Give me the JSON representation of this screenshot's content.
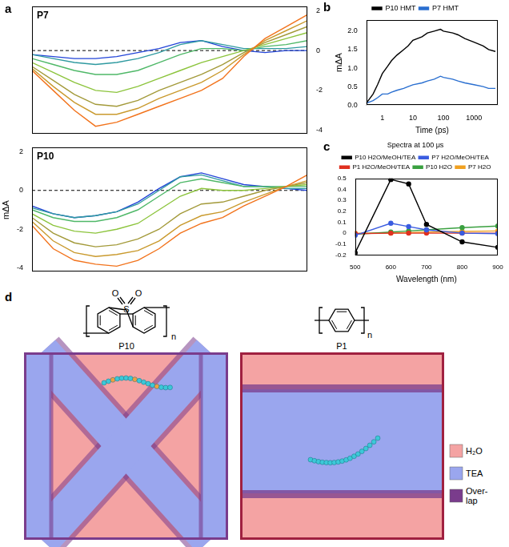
{
  "chart_data": [
    {
      "type": "line",
      "panel_label": "a",
      "title": "P7",
      "tick_labels": "y",
      "grid": false,
      "x": [
        450,
        475,
        500,
        525,
        550,
        575,
        600,
        625,
        650,
        675,
        700,
        725,
        750,
        775
      ],
      "xlim": [
        450,
        775
      ],
      "ylim": [
        -4.2,
        2.2
      ],
      "yticks": [
        -4,
        -2,
        0,
        2
      ],
      "series": [
        {
          "color": "#f2731c",
          "values": [
            -1.0,
            -2.0,
            -3.0,
            -3.8,
            -3.6,
            -3.2,
            -2.8,
            -2.4,
            -2.0,
            -1.4,
            -0.3,
            0.6,
            1.2,
            1.8
          ]
        },
        {
          "color": "#c99a2e",
          "values": [
            -0.9,
            -1.8,
            -2.6,
            -3.2,
            -3.2,
            -2.9,
            -2.4,
            -2.0,
            -1.6,
            -1.0,
            -0.2,
            0.5,
            1.0,
            1.5
          ]
        },
        {
          "color": "#a39a3a",
          "values": [
            -0.8,
            -1.5,
            -2.2,
            -2.7,
            -2.8,
            -2.5,
            -2.0,
            -1.6,
            -1.2,
            -0.7,
            -0.1,
            0.4,
            0.8,
            1.2
          ]
        },
        {
          "color": "#8cc43c",
          "values": [
            -0.6,
            -1.1,
            -1.6,
            -2.0,
            -2.1,
            -1.8,
            -1.4,
            -1.0,
            -0.6,
            -0.3,
            0.0,
            0.3,
            0.6,
            0.9
          ]
        },
        {
          "color": "#4fb868",
          "values": [
            -0.4,
            -0.7,
            -1.0,
            -1.2,
            -1.2,
            -1.0,
            -0.6,
            -0.2,
            0.1,
            0.1,
            0.0,
            0.2,
            0.3,
            0.5
          ]
        },
        {
          "color": "#2f9aa0",
          "values": [
            -0.2,
            -0.4,
            -0.6,
            -0.7,
            -0.6,
            -0.4,
            -0.1,
            0.3,
            0.5,
            0.3,
            0.1,
            0.1,
            0.1,
            0.2
          ]
        },
        {
          "color": "#2244d8",
          "values": [
            -0.2,
            -0.3,
            -0.4,
            -0.4,
            -0.3,
            -0.1,
            0.1,
            0.4,
            0.5,
            0.2,
            0.0,
            -0.1,
            0.0,
            0.0
          ]
        },
        {
          "color": "#000000",
          "line_style": "dashed",
          "values": [
            0,
            0,
            0,
            0,
            0,
            0,
            0,
            0,
            0,
            0,
            0,
            0,
            0,
            0
          ]
        }
      ]
    },
    {
      "type": "line",
      "title": "P10",
      "y_label": "mΔA",
      "tick_labels": "y",
      "grid": false,
      "x": [
        450,
        475,
        500,
        525,
        550,
        575,
        600,
        625,
        650,
        675,
        700,
        725,
        750,
        775
      ],
      "xlim": [
        450,
        775
      ],
      "ylim": [
        -4.2,
        2.2
      ],
      "yticks": [
        -4,
        -2,
        0,
        2
      ],
      "series": [
        {
          "color": "#f2731c",
          "values": [
            -1.8,
            -3.0,
            -3.6,
            -3.8,
            -3.9,
            -3.6,
            -3.0,
            -2.2,
            -1.7,
            -1.4,
            -0.8,
            -0.3,
            0.2,
            0.8
          ]
        },
        {
          "color": "#c99a2e",
          "values": [
            -1.6,
            -2.6,
            -3.2,
            -3.4,
            -3.3,
            -3.1,
            -2.6,
            -1.8,
            -1.3,
            -1.1,
            -0.6,
            -0.2,
            0.2,
            0.5
          ]
        },
        {
          "color": "#a39a3a",
          "values": [
            -1.4,
            -2.2,
            -2.7,
            -2.9,
            -2.8,
            -2.5,
            -2.0,
            -1.2,
            -0.7,
            -0.6,
            -0.3,
            0.0,
            0.2,
            0.4
          ]
        },
        {
          "color": "#8cc43c",
          "values": [
            -1.2,
            -1.8,
            -2.1,
            -2.2,
            -2.0,
            -1.7,
            -1.0,
            -0.3,
            0.1,
            0.0,
            0.0,
            0.1,
            0.2,
            0.3
          ]
        },
        {
          "color": "#4fb868",
          "values": [
            -1.0,
            -1.4,
            -1.6,
            -1.6,
            -1.4,
            -1.0,
            -0.3,
            0.4,
            0.6,
            0.4,
            0.2,
            0.2,
            0.2,
            0.2
          ]
        },
        {
          "color": "#2f9aa0",
          "values": [
            -0.9,
            -1.2,
            -1.4,
            -1.3,
            -1.1,
            -0.7,
            0.0,
            0.7,
            0.8,
            0.5,
            0.2,
            0.2,
            0.1,
            0.1
          ]
        },
        {
          "color": "#2244d8",
          "values": [
            -0.8,
            -1.2,
            -1.4,
            -1.3,
            -1.1,
            -0.6,
            0.1,
            0.7,
            0.9,
            0.6,
            0.3,
            0.2,
            0.1,
            0.0
          ]
        },
        {
          "color": "#000000",
          "line_style": "dashed",
          "values": [
            0,
            0,
            0,
            0,
            0,
            0,
            0,
            0,
            0,
            0,
            0,
            0,
            0,
            0
          ]
        }
      ]
    },
    {
      "type": "line",
      "panel_label": "b",
      "x_label": "Time (ps)",
      "y_label": "mΔA",
      "log": "x",
      "grid": false,
      "legend": "top",
      "x": [
        0.3,
        0.5,
        0.7,
        1,
        1.5,
        2,
        3,
        5,
        7,
        10,
        20,
        30,
        50,
        80,
        100,
        200,
        300,
        500,
        1000,
        2000,
        3000,
        5000
      ],
      "xlim": [
        0.3,
        6000
      ],
      "xticks": [
        1,
        10,
        100,
        1000
      ],
      "ylim": [
        0,
        2.3
      ],
      "yticks": [
        {
          "value": 0,
          "label": "0.0"
        },
        {
          "value": 0.5,
          "label": "0.5"
        },
        {
          "value": 1,
          "label": "1.0"
        },
        {
          "value": 1.5,
          "label": "1.5"
        },
        {
          "value": 2,
          "label": "2.0"
        }
      ],
      "series": [
        {
          "name": "P10 HMT",
          "color": "#000000",
          "values": [
            0.05,
            0.3,
            0.55,
            0.85,
            1.05,
            1.2,
            1.35,
            1.5,
            1.6,
            1.75,
            1.85,
            1.95,
            2.0,
            2.05,
            2.0,
            1.95,
            1.9,
            1.8,
            1.7,
            1.6,
            1.5,
            1.45
          ]
        },
        {
          "name": "P7 HMT",
          "color": "#2a6fd0",
          "values": [
            0.05,
            0.12,
            0.2,
            0.3,
            0.3,
            0.35,
            0.4,
            0.45,
            0.5,
            0.55,
            0.6,
            0.65,
            0.7,
            0.78,
            0.75,
            0.7,
            0.65,
            0.6,
            0.55,
            0.5,
            0.45,
            0.45
          ]
        }
      ]
    },
    {
      "type": "line",
      "panel_label": "c",
      "title": "Spectra at 100 μs",
      "x_label": "Wavelength (nm)",
      "grid": false,
      "legend": "top",
      "marker": "circle",
      "x": [
        500,
        600,
        650,
        700,
        800,
        900
      ],
      "xlim": [
        500,
        900
      ],
      "xticks": [
        500,
        600,
        700,
        800,
        900
      ],
      "ylim": [
        -0.2,
        0.5
      ],
      "yticks": [
        -0.2,
        -0.1,
        0,
        0.1,
        0.2,
        0.3,
        0.4,
        0.5
      ],
      "series": [
        {
          "name": "P10 H2O/MeOH/TEA",
          "color": "#000000",
          "values": [
            -0.18,
            0.49,
            0.45,
            0.08,
            -0.08,
            -0.13
          ]
        },
        {
          "name": "P7 H2O/MeOH/TEA",
          "color": "#3a5ce0",
          "values": [
            -0.02,
            0.09,
            0.06,
            0.03,
            0.0,
            -0.005
          ]
        },
        {
          "name": "P1 H2O/MeOH/TEA",
          "color": "#e03020",
          "values": [
            -0.005,
            0.0,
            0.0,
            0.0,
            0.0,
            0.0
          ]
        },
        {
          "name": "P10 H2O",
          "color": "#3aa040",
          "values": [
            -0.01,
            0.01,
            0.02,
            0.03,
            0.05,
            0.065
          ]
        },
        {
          "name": "P7 H2O",
          "color": "#f0a020",
          "values": [
            0.0,
            0.0,
            0.005,
            0.01,
            0.015,
            0.02
          ]
        }
      ]
    }
  ],
  "diagram": {
    "panel_label": "d",
    "structures": [
      {
        "name": "P10",
        "atoms": [
          "O",
          "S",
          "O"
        ],
        "repeat": "n"
      },
      {
        "name": "P1",
        "repeat": "n"
      }
    ],
    "legend": [
      {
        "label": "H₂O",
        "color": "#f4a3a3"
      },
      {
        "label": "TEA",
        "color": "#9aa6ee"
      },
      {
        "label": "Over-lap",
        "color": "#7a3c8c"
      }
    ]
  }
}
